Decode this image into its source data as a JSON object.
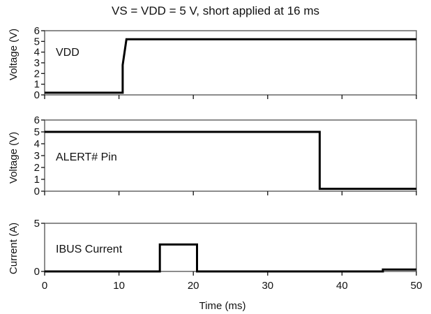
{
  "chart_data": {
    "title": "VS = VDD = 5 V, short applied at 16 ms",
    "xlabel": "Time (ms)",
    "xlim": [
      0,
      50
    ],
    "xticks": [
      "0",
      "10",
      "20",
      "30",
      "40",
      "50"
    ],
    "panels": [
      {
        "type": "line",
        "ylabel": "Voltage (V)",
        "ylim": [
          0,
          6
        ],
        "yticks": [
          "0",
          "1",
          "2",
          "3",
          "4",
          "5",
          "6"
        ],
        "annotation": "VDD",
        "series": [
          {
            "x": [
              0,
              10.5,
              10.5,
              11,
              50
            ],
            "y": [
              0.2,
              0.2,
              2.8,
              5.2,
              5.2
            ]
          }
        ]
      },
      {
        "type": "line",
        "ylabel": "Voltage (V)",
        "ylim": [
          0,
          6
        ],
        "yticks": [
          "0",
          "1",
          "2",
          "3",
          "4",
          "5",
          "6"
        ],
        "annotation": "ALERT# Pin",
        "series": [
          {
            "x": [
              0,
              37,
              37,
              50
            ],
            "y": [
              5.0,
              5.0,
              0.2,
              0.2
            ]
          }
        ]
      },
      {
        "type": "line",
        "ylabel": "Current (A)",
        "ylim": [
          0,
          5
        ],
        "yticks": [
          "0",
          "5"
        ],
        "annotation": "IBUS Current",
        "series": [
          {
            "x": [
              0,
              15.5,
              15.5,
              20.5,
              20.5,
              45.5,
              45.5,
              50
            ],
            "y": [
              0,
              0,
              2.8,
              2.8,
              0,
              0,
              0.2,
              0.2
            ]
          }
        ]
      }
    ]
  }
}
